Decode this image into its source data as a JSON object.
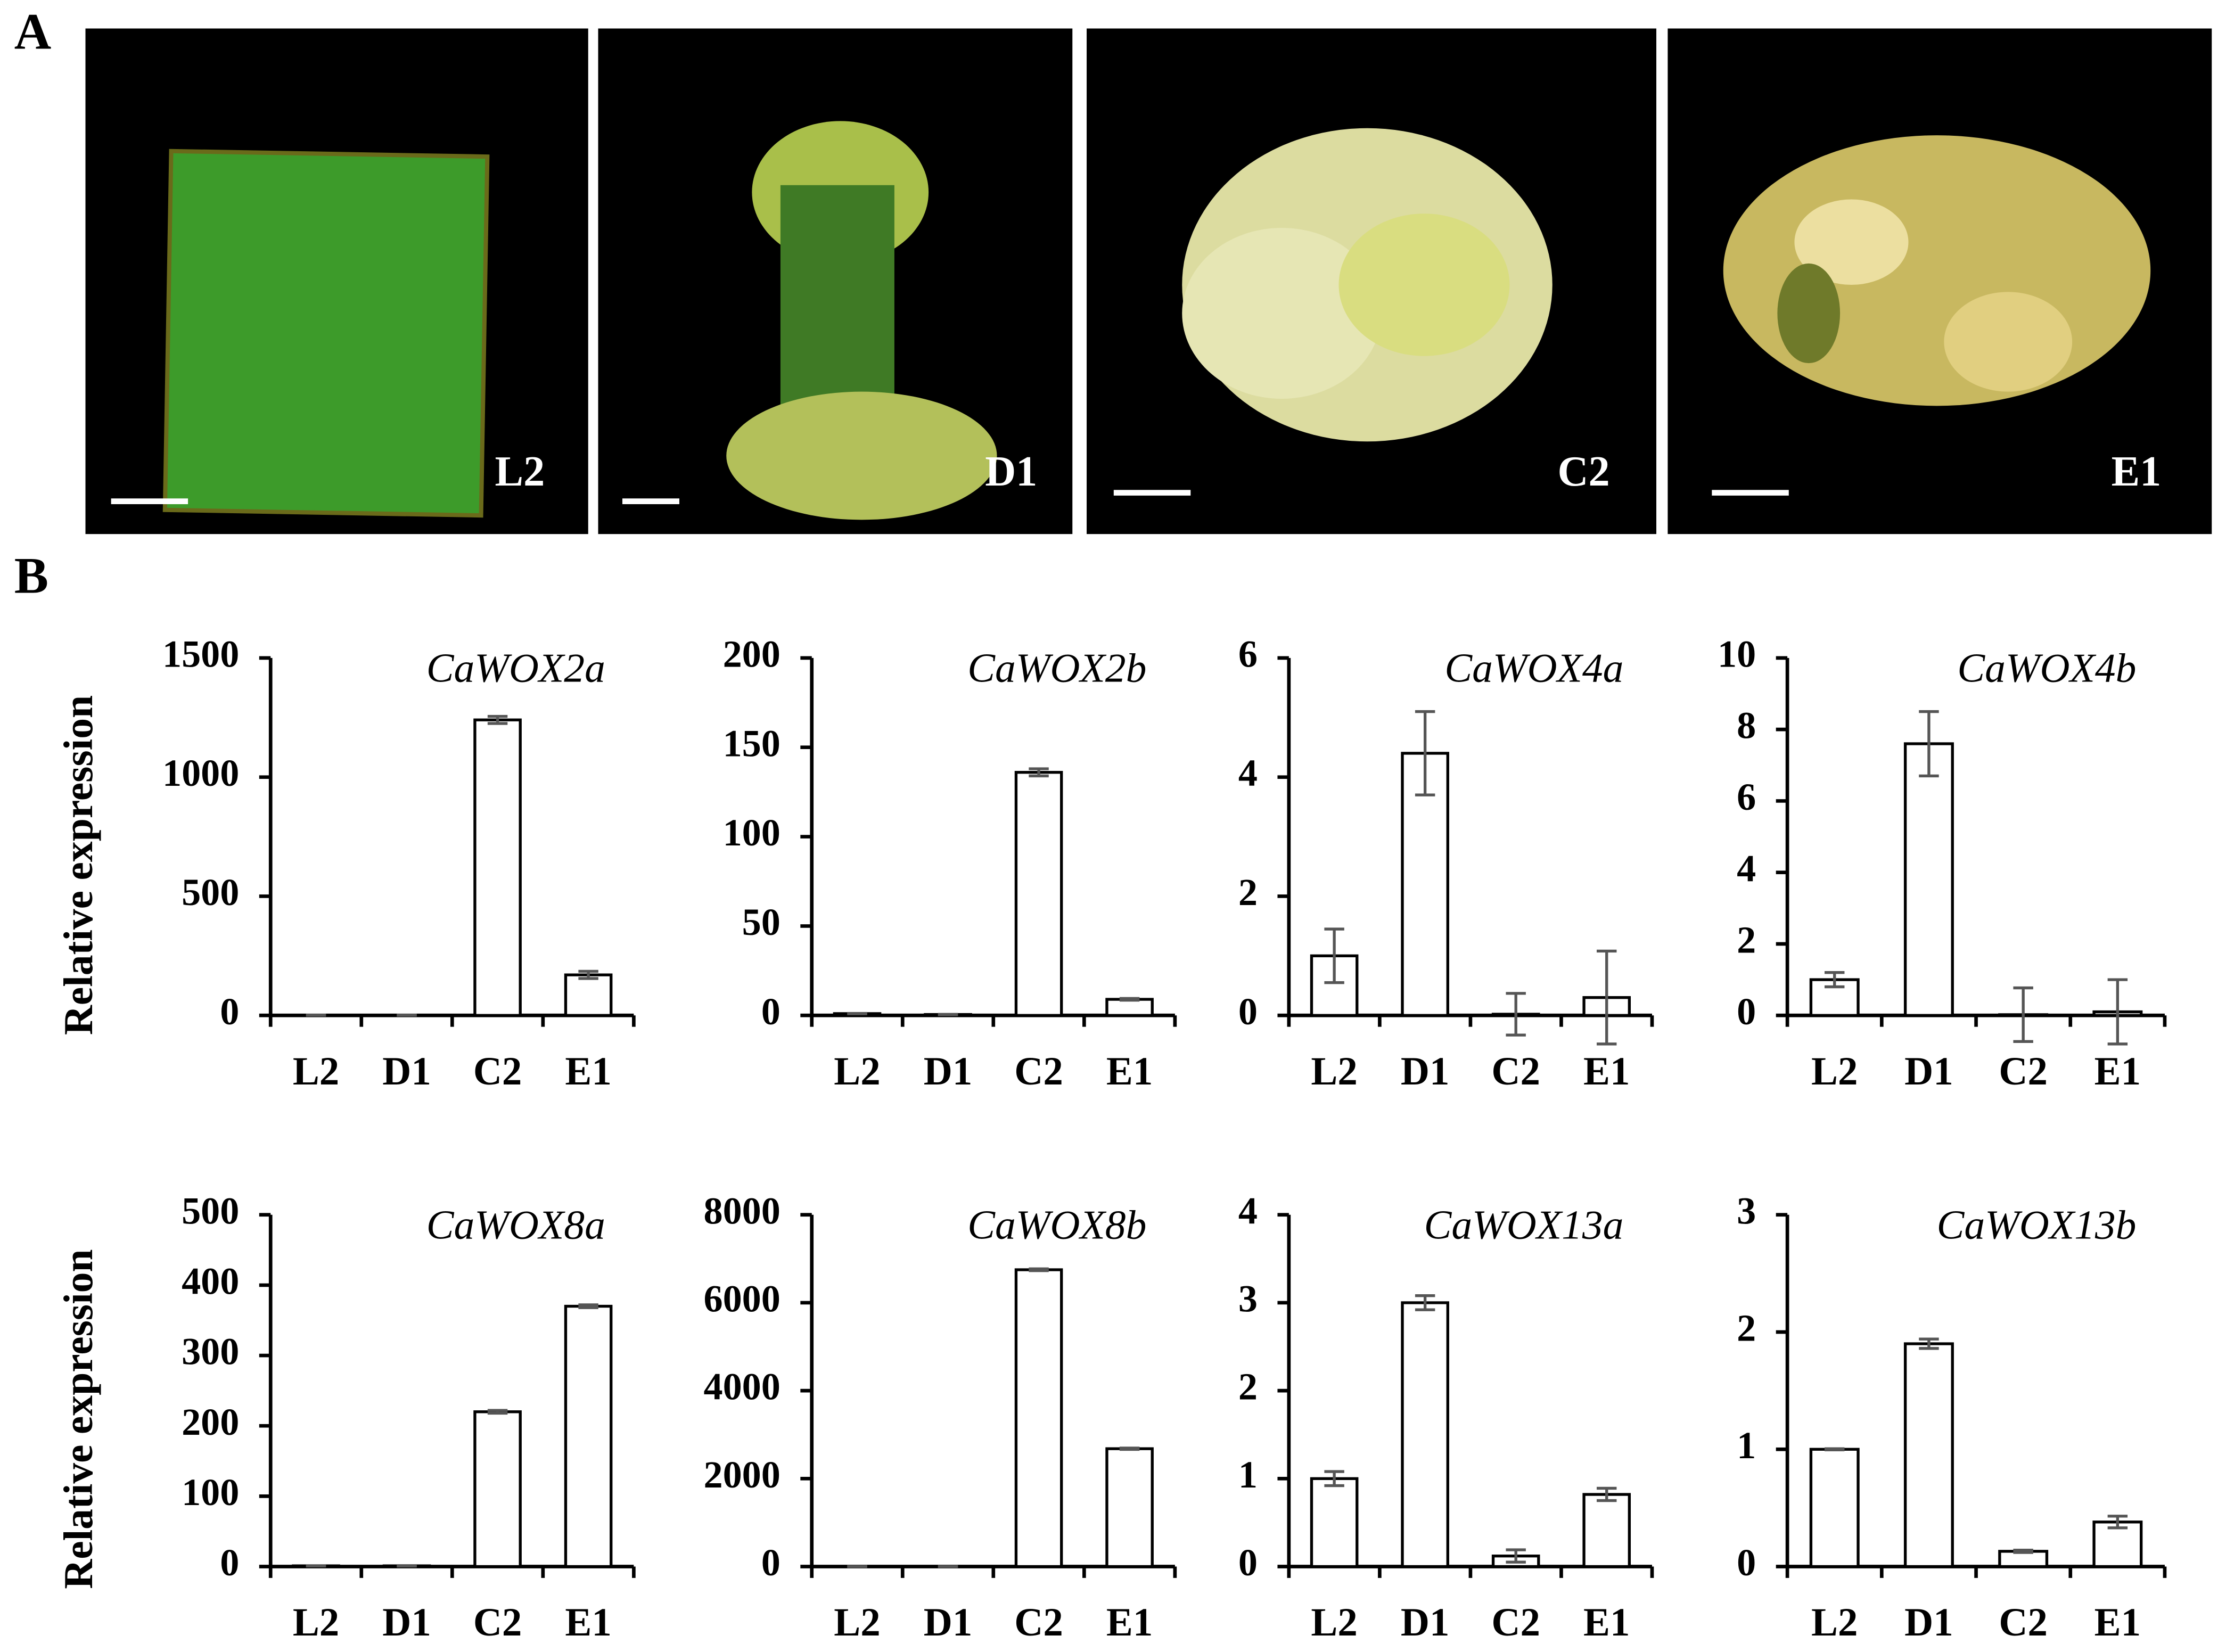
{
  "panel_a": {
    "label": "A",
    "photos": [
      {
        "label": "L2"
      },
      {
        "label": "D1"
      },
      {
        "label": "C2"
      },
      {
        "label": "E1"
      }
    ]
  },
  "panel_b": {
    "label": "B"
  },
  "chart_data": [
    {
      "type": "bar",
      "title": "CaWOX2a",
      "y_label": "Relative expression",
      "categories": [
        "L2",
        "D1",
        "C2",
        "E1"
      ],
      "values": [
        1,
        1,
        1240,
        170
      ],
      "errors": [
        0.3,
        0.3,
        15,
        15
      ],
      "color": "#ffffff",
      "ylim": [
        0,
        1500
      ],
      "yticks": [
        0,
        500,
        1000,
        1500
      ]
    },
    {
      "type": "bar",
      "title": "CaWOX2b",
      "categories": [
        "L2",
        "D1",
        "C2",
        "E1"
      ],
      "values": [
        1,
        0.5,
        136,
        9
      ],
      "errors": [
        0.1,
        0.1,
        2,
        0.5
      ],
      "color": "#ffffff",
      "ylim": [
        0,
        200
      ],
      "yticks": [
        0,
        50,
        100,
        150,
        200
      ]
    },
    {
      "type": "bar",
      "title": "CaWOX4a",
      "categories": [
        "L2",
        "D1",
        "C2",
        "E1"
      ],
      "values": [
        1,
        4.4,
        0.02,
        0.3
      ],
      "errors": [
        0.45,
        0.7,
        0.35,
        0.78
      ],
      "color": "#ffffff",
      "ylim": [
        0,
        6
      ],
      "yticks": [
        0,
        2,
        4,
        6
      ]
    },
    {
      "type": "bar",
      "title": "CaWOX4b",
      "categories": [
        "L2",
        "D1",
        "C2",
        "E1"
      ],
      "values": [
        1,
        7.6,
        0.02,
        0.1
      ],
      "errors": [
        0.2,
        0.9,
        0.75,
        0.9
      ],
      "color": "#ffffff",
      "ylim": [
        0,
        10
      ],
      "yticks": [
        0,
        2,
        4,
        6,
        8,
        10
      ]
    },
    {
      "type": "bar",
      "title": "CaWOX8a",
      "y_label": "Relative expression",
      "categories": [
        "L2",
        "D1",
        "C2",
        "E1"
      ],
      "values": [
        1,
        1,
        220,
        370
      ],
      "errors": [
        0.2,
        0.3,
        2,
        2
      ],
      "color": "#ffffff",
      "ylim": [
        0,
        500
      ],
      "yticks": [
        0,
        100,
        200,
        300,
        400,
        500
      ]
    },
    {
      "type": "bar",
      "title": "CaWOX8b",
      "categories": [
        "L2",
        "D1",
        "C2",
        "E1"
      ],
      "values": [
        1,
        1,
        6750,
        2680
      ],
      "errors": [
        0.2,
        0.2,
        20,
        15
      ],
      "color": "#ffffff",
      "ylim": [
        0,
        8000
      ],
      "yticks": [
        0,
        2000,
        4000,
        6000,
        8000
      ]
    },
    {
      "type": "bar",
      "title": "CaWOX13a",
      "categories": [
        "L2",
        "D1",
        "C2",
        "E1"
      ],
      "values": [
        1,
        3,
        0.12,
        0.82
      ],
      "errors": [
        0.08,
        0.08,
        0.07,
        0.07
      ],
      "color": "#ffffff",
      "ylim": [
        0,
        4
      ],
      "yticks": [
        0,
        1,
        2,
        3,
        4
      ]
    },
    {
      "type": "bar",
      "title": "CaWOX13b",
      "categories": [
        "L2",
        "D1",
        "C2",
        "E1"
      ],
      "values": [
        1,
        1.9,
        0.13,
        0.38
      ],
      "errors": [
        0.005,
        0.04,
        0.01,
        0.05
      ],
      "color": "#ffffff",
      "ylim": [
        0,
        3
      ],
      "yticks": [
        0,
        1,
        2,
        3
      ]
    }
  ]
}
